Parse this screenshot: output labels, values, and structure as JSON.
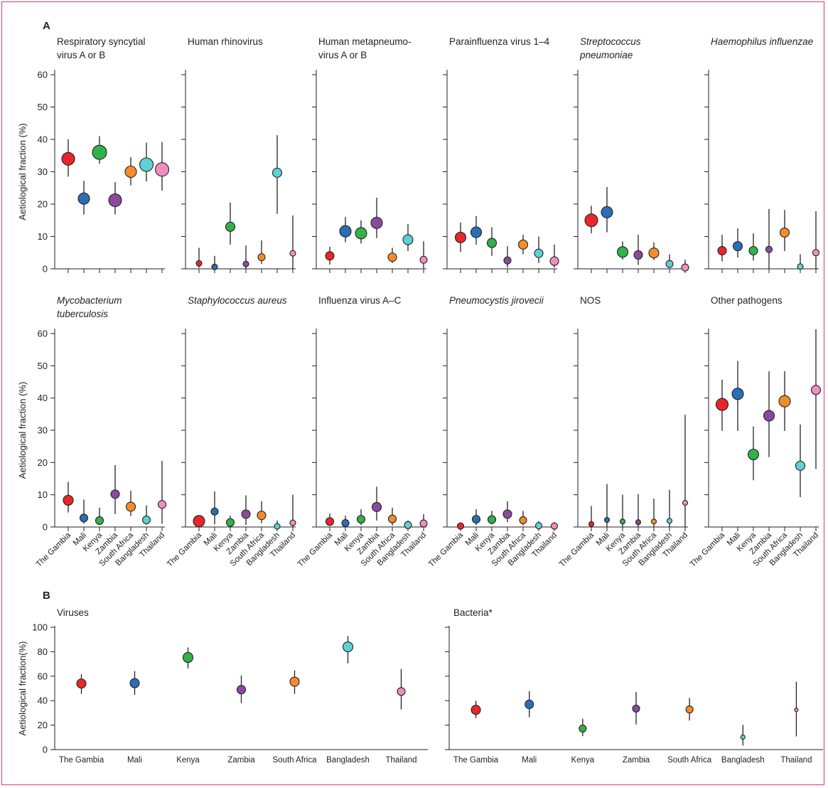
{
  "colors": {
    "The Gambia": "#e8262b",
    "Mali": "#2a6fb5",
    "Kenya": "#34b04a",
    "Zambia": "#8a4a9e",
    "South Africa": "#f58c2a",
    "Bangladesh": "#5fd0d4",
    "Thailand": "#f28dc2"
  },
  "countries": [
    "The Gambia",
    "Mali",
    "Kenya",
    "Zambia",
    "South Africa",
    "Bangladesh",
    "Thailand"
  ],
  "chart_data": [
    {
      "panel_label": "A",
      "type": "scatter",
      "ylabel": "Aetiological fraction (%)",
      "ylim": [
        0,
        60
      ],
      "yticks": [
        0,
        10,
        20,
        30,
        40,
        50,
        60
      ],
      "rows": [
        {
          "panels": [
            {
              "title_lines": [
                "Respiratory syncytial",
                "virus A or B"
              ],
              "italic": false,
              "points": [
                {
                  "y": 34,
                  "lo": 28.5,
                  "hi": 40,
                  "r": 9
                },
                {
                  "y": 21.7,
                  "lo": 16.8,
                  "hi": 27.2,
                  "r": 8
                },
                {
                  "y": 36,
                  "lo": 32.5,
                  "hi": 41,
                  "r": 10
                },
                {
                  "y": 21.2,
                  "lo": 16.8,
                  "hi": 26.8,
                  "r": 9
                },
                {
                  "y": 30,
                  "lo": 25.8,
                  "hi": 34.5,
                  "r": 8
                },
                {
                  "y": 32.2,
                  "lo": 27,
                  "hi": 39,
                  "r": 9.5
                },
                {
                  "y": 30.7,
                  "lo": 24.2,
                  "hi": 39.2,
                  "r": 9.5
                }
              ]
            },
            {
              "title_lines": [
                "Human rhinovirus"
              ],
              "italic": false,
              "points": [
                {
                  "y": 1.7,
                  "lo": 0.3,
                  "hi": 6.5,
                  "r": 4
                },
                {
                  "y": 0.6,
                  "lo": 0,
                  "hi": 4,
                  "r": 4
                },
                {
                  "y": 13,
                  "lo": 7.5,
                  "hi": 20.5,
                  "r": 6.5
                },
                {
                  "y": 1.5,
                  "lo": 0,
                  "hi": 7.2,
                  "r": 4
                },
                {
                  "y": 3.6,
                  "lo": 1.5,
                  "hi": 8.8,
                  "r": 5
                },
                {
                  "y": 29.7,
                  "lo": 17,
                  "hi": 41.3,
                  "r": 6.5
                },
                {
                  "y": 4.8,
                  "lo": 0,
                  "hi": 16.5,
                  "r": 4
                }
              ]
            },
            {
              "title_lines": [
                "Human metapneumo-",
                "virus A or B"
              ],
              "italic": false,
              "points": [
                {
                  "y": 4,
                  "lo": 1.3,
                  "hi": 6.8,
                  "r": 6
                },
                {
                  "y": 11.6,
                  "lo": 8.2,
                  "hi": 16,
                  "r": 8
                },
                {
                  "y": 11,
                  "lo": 7.8,
                  "hi": 15,
                  "r": 8
                },
                {
                  "y": 14.2,
                  "lo": 9.5,
                  "hi": 22,
                  "r": 8
                },
                {
                  "y": 3.6,
                  "lo": 1.8,
                  "hi": 6.5,
                  "r": 6
                },
                {
                  "y": 9,
                  "lo": 5.5,
                  "hi": 13.8,
                  "r": 7
                },
                {
                  "y": 2.8,
                  "lo": 0.2,
                  "hi": 8.5,
                  "r": 5
                }
              ]
            },
            {
              "title_lines": [
                "Parainfluenza virus 1–4"
              ],
              "italic": false,
              "points": [
                {
                  "y": 9.7,
                  "lo": 5.2,
                  "hi": 14.3,
                  "r": 7.5
                },
                {
                  "y": 11.3,
                  "lo": 7.5,
                  "hi": 16.3,
                  "r": 7.5
                },
                {
                  "y": 8,
                  "lo": 4,
                  "hi": 12.8,
                  "r": 6.5
                },
                {
                  "y": 2.6,
                  "lo": 0.4,
                  "hi": 7,
                  "r": 5
                },
                {
                  "y": 7.5,
                  "lo": 4.5,
                  "hi": 10.5,
                  "r": 6.5
                },
                {
                  "y": 4.8,
                  "lo": 1.8,
                  "hi": 10,
                  "r": 6
                },
                {
                  "y": 2.4,
                  "lo": 0.4,
                  "hi": 7.5,
                  "r": 6
                }
              ]
            },
            {
              "title_lines": [
                "Streptococcus",
                "pneumoniae"
              ],
              "italic": true,
              "points": [
                {
                  "y": 15,
                  "lo": 11,
                  "hi": 19.5,
                  "r": 9
                },
                {
                  "y": 17.5,
                  "lo": 11.3,
                  "hi": 25.3,
                  "r": 8
                },
                {
                  "y": 5.2,
                  "lo": 2.8,
                  "hi": 8.5,
                  "r": 7.5
                },
                {
                  "y": 4.3,
                  "lo": 1.2,
                  "hi": 10.5,
                  "r": 6
                },
                {
                  "y": 4.9,
                  "lo": 2.7,
                  "hi": 8.2,
                  "r": 7
                },
                {
                  "y": 1.5,
                  "lo": 0.3,
                  "hi": 4.5,
                  "r": 5
                },
                {
                  "y": 0.4,
                  "lo": 0,
                  "hi": 2.8,
                  "r": 5
                }
              ]
            },
            {
              "title_lines": [
                "Haemophilus influenzae"
              ],
              "italic": true,
              "points": [
                {
                  "y": 5.6,
                  "lo": 2.3,
                  "hi": 10.5,
                  "r": 6
                },
                {
                  "y": 7,
                  "lo": 3.5,
                  "hi": 12.5,
                  "r": 6.5
                },
                {
                  "y": 5.6,
                  "lo": 2.6,
                  "hi": 11,
                  "r": 6
                },
                {
                  "y": 6,
                  "lo": 0,
                  "hi": 18.5,
                  "r": 4.5
                },
                {
                  "y": 11.2,
                  "lo": 5.5,
                  "hi": 18.2,
                  "r": 6.5
                },
                {
                  "y": 0.7,
                  "lo": 0,
                  "hi": 4.5,
                  "r": 4
                },
                {
                  "y": 5,
                  "lo": 0,
                  "hi": 17.8,
                  "r": 4.5
                }
              ]
            }
          ]
        },
        {
          "panels": [
            {
              "title_lines": [
                "Mycobacterium",
                "tuberculosis"
              ],
              "italic": true,
              "points": [
                {
                  "y": 8.3,
                  "lo": 4.5,
                  "hi": 14,
                  "r": 7
                },
                {
                  "y": 2.8,
                  "lo": 1,
                  "hi": 8.5,
                  "r": 5.5
                },
                {
                  "y": 2,
                  "lo": 0.7,
                  "hi": 6,
                  "r": 5.5
                },
                {
                  "y": 10.2,
                  "lo": 4,
                  "hi": 19.2,
                  "r": 6
                },
                {
                  "y": 6.3,
                  "lo": 3.4,
                  "hi": 11.2,
                  "r": 6.5
                },
                {
                  "y": 2.2,
                  "lo": 0.7,
                  "hi": 6.7,
                  "r": 5.5
                },
                {
                  "y": 7,
                  "lo": 1,
                  "hi": 20.5,
                  "r": 5.5
                }
              ]
            },
            {
              "title_lines": [
                "Staphylococcus aureus"
              ],
              "italic": true,
              "points": [
                {
                  "y": 1.8,
                  "lo": 0.7,
                  "hi": 3.5,
                  "r": 8
                },
                {
                  "y": 4.8,
                  "lo": 0.8,
                  "hi": 11,
                  "r": 5
                },
                {
                  "y": 1.4,
                  "lo": 0.3,
                  "hi": 3.5,
                  "r": 5.5
                },
                {
                  "y": 4,
                  "lo": 0.6,
                  "hi": 9.8,
                  "r": 6
                },
                {
                  "y": 3.6,
                  "lo": 1.2,
                  "hi": 8,
                  "r": 6
                },
                {
                  "y": 0.2,
                  "lo": 0,
                  "hi": 2,
                  "r": 4
                },
                {
                  "y": 1.3,
                  "lo": 0,
                  "hi": 10,
                  "r": 4
                }
              ]
            },
            {
              "title_lines": [
                "Influenza virus A–C"
              ],
              "italic": false,
              "points": [
                {
                  "y": 1.7,
                  "lo": 0.5,
                  "hi": 4.2,
                  "r": 5.5
                },
                {
                  "y": 1.2,
                  "lo": 0.2,
                  "hi": 3.5,
                  "r": 5
                },
                {
                  "y": 2.4,
                  "lo": 0.6,
                  "hi": 5.5,
                  "r": 5.5
                },
                {
                  "y": 6.2,
                  "lo": 2,
                  "hi": 12.5,
                  "r": 6.5
                },
                {
                  "y": 2.5,
                  "lo": 0.5,
                  "hi": 6,
                  "r": 5.5
                },
                {
                  "y": 0.6,
                  "lo": 0,
                  "hi": 2,
                  "r": 5
                },
                {
                  "y": 1.1,
                  "lo": 0,
                  "hi": 4,
                  "r": 5
                }
              ]
            },
            {
              "title_lines": [
                "Pneumocystis jirovecii"
              ],
              "italic": true,
              "points": [
                {
                  "y": 0.3,
                  "lo": 0,
                  "hi": 1.2,
                  "r": 4.5
                },
                {
                  "y": 2.4,
                  "lo": 0.6,
                  "hi": 5.5,
                  "r": 5.5
                },
                {
                  "y": 2.3,
                  "lo": 0.8,
                  "hi": 5,
                  "r": 5.5
                },
                {
                  "y": 4,
                  "lo": 1.5,
                  "hi": 8,
                  "r": 6
                },
                {
                  "y": 2.1,
                  "lo": 0.5,
                  "hi": 5,
                  "r": 5
                },
                {
                  "y": 0.4,
                  "lo": 0,
                  "hi": 1.8,
                  "r": 4.5
                },
                {
                  "y": 0.3,
                  "lo": 0,
                  "hi": 1.5,
                  "r": 4.5
                }
              ]
            },
            {
              "title_lines": [
                "NOS"
              ],
              "italic": false,
              "points": [
                {
                  "y": 0.9,
                  "lo": 0,
                  "hi": 6.5,
                  "r": 3.5
                },
                {
                  "y": 2.2,
                  "lo": 0,
                  "hi": 13.3,
                  "r": 3.5
                },
                {
                  "y": 1.7,
                  "lo": 0,
                  "hi": 10,
                  "r": 3.5
                },
                {
                  "y": 1.5,
                  "lo": 0,
                  "hi": 10.2,
                  "r": 3.5
                },
                {
                  "y": 1.7,
                  "lo": 0,
                  "hi": 8.8,
                  "r": 3.5
                },
                {
                  "y": 1.9,
                  "lo": 0,
                  "hi": 11.5,
                  "r": 3.5
                },
                {
                  "y": 7.5,
                  "lo": 0,
                  "hi": 34.8,
                  "r": 3.5
                }
              ]
            },
            {
              "title_lines": [
                "Other pathogens"
              ],
              "italic": false,
              "points": [
                {
                  "y": 38,
                  "lo": 29.8,
                  "hi": 45.7,
                  "r": 8.5
                },
                {
                  "y": 41.3,
                  "lo": 29.8,
                  "hi": 51.5,
                  "r": 8
                },
                {
                  "y": 22.5,
                  "lo": 14.5,
                  "hi": 31.2,
                  "r": 7.5
                },
                {
                  "y": 34.5,
                  "lo": 21.7,
                  "hi": 48.3,
                  "r": 7.5
                },
                {
                  "y": 39,
                  "lo": 29.8,
                  "hi": 48.3,
                  "r": 8
                },
                {
                  "y": 19,
                  "lo": 9.3,
                  "hi": 31.8,
                  "r": 6.5
                },
                {
                  "y": 42.5,
                  "lo": 18,
                  "hi": 61.3,
                  "r": 6.5
                }
              ]
            }
          ]
        }
      ]
    },
    {
      "panel_label": "B",
      "type": "scatter",
      "ylabel": "Aetiological fraction(%)",
      "ylim": [
        0,
        100
      ],
      "yticks": [
        0,
        20,
        40,
        60,
        80,
        100
      ],
      "panels": [
        {
          "title": "Viruses",
          "points": [
            {
              "y": 54,
              "lo": 45.5,
              "hi": 61.5,
              "r": 6.5
            },
            {
              "y": 54.3,
              "lo": 44.8,
              "hi": 64.2,
              "r": 6.5
            },
            {
              "y": 75.3,
              "lo": 66.3,
              "hi": 83.5,
              "r": 7
            },
            {
              "y": 49,
              "lo": 38,
              "hi": 60.5,
              "r": 6
            },
            {
              "y": 55.5,
              "lo": 45.5,
              "hi": 64.8,
              "r": 6.5
            },
            {
              "y": 84,
              "lo": 70.5,
              "hi": 92.8,
              "r": 7
            },
            {
              "y": 47.5,
              "lo": 32.8,
              "hi": 65.8,
              "r": 5.5
            }
          ]
        },
        {
          "title": "Bacteria*",
          "points": [
            {
              "y": 32.5,
              "lo": 25.8,
              "hi": 40,
              "r": 6.5
            },
            {
              "y": 37,
              "lo": 26.5,
              "hi": 47.8,
              "r": 6
            },
            {
              "y": 17.2,
              "lo": 11,
              "hi": 25.2,
              "r": 5
            },
            {
              "y": 33.5,
              "lo": 20.5,
              "hi": 47.2,
              "r": 5
            },
            {
              "y": 32.8,
              "lo": 23.8,
              "hi": 42.2,
              "r": 5
            },
            {
              "y": 10.2,
              "lo": 3.3,
              "hi": 20.2,
              "r": 3
            },
            {
              "y": 32.5,
              "lo": 10.8,
              "hi": 55.5,
              "r": 2.5
            }
          ]
        }
      ]
    }
  ]
}
